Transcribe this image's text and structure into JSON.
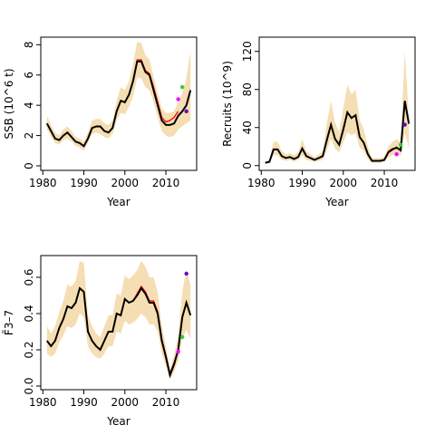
{
  "chart_data": [
    {
      "type": "line",
      "xlabel": "Year",
      "ylabel": "SSB (10^6 t)",
      "x": [
        1981,
        1982,
        1983,
        1984,
        1985,
        1986,
        1987,
        1988,
        1989,
        1990,
        1991,
        1992,
        1993,
        1994,
        1995,
        1996,
        1997,
        1998,
        1999,
        2000,
        2001,
        2002,
        2003,
        2004,
        2005,
        2006,
        2007,
        2008,
        2009,
        2010,
        2011,
        2012,
        2013,
        2014,
        2015,
        2016
      ],
      "xlim": [
        1979.5,
        2017.5
      ],
      "xticks": [
        1980,
        1990,
        2000,
        2010
      ],
      "ylim": [
        -0.3,
        8.5
      ],
      "yticks": [
        0,
        2,
        4,
        6,
        8
      ],
      "band": {
        "color": "#f5deb3",
        "upper": [
          3.3,
          2.7,
          2.2,
          2.0,
          2.4,
          2.6,
          2.3,
          1.9,
          1.8,
          1.6,
          2.2,
          3.0,
          3.1,
          3.1,
          2.8,
          2.7,
          3.0,
          4.3,
          5.2,
          5.0,
          5.6,
          6.7,
          8.2,
          8.1,
          7.3,
          7.0,
          5.9,
          4.8,
          3.8,
          3.5,
          3.5,
          3.6,
          4.2,
          4.8,
          5.8,
          7.6
        ],
        "lower": [
          2.4,
          1.9,
          1.5,
          1.4,
          1.7,
          1.8,
          1.6,
          1.3,
          1.2,
          1.0,
          1.5,
          2.1,
          2.2,
          2.1,
          1.9,
          1.8,
          2.1,
          3.0,
          3.5,
          3.4,
          3.9,
          4.6,
          5.8,
          5.8,
          5.2,
          5.0,
          4.2,
          3.2,
          2.3,
          2.0,
          1.9,
          2.0,
          2.4,
          2.6,
          2.8,
          3.0
        ]
      },
      "series": [
        {
          "color": "#ff0000",
          "values": [
            2.8,
            2.3,
            1.8,
            1.7,
            2.0,
            2.2,
            1.9,
            1.6,
            1.5,
            1.3,
            1.8,
            2.5,
            2.6,
            2.6,
            2.3,
            2.2,
            2.5,
            3.6,
            4.3,
            4.2,
            4.7,
            5.6,
            7.0,
            7.0,
            6.3,
            6.1,
            5.2,
            4.2,
            3.2,
            2.9,
            3.0,
            3.2,
            3.6,
            null,
            null,
            null
          ]
        },
        {
          "color": "#000000",
          "values": [
            2.8,
            2.3,
            1.8,
            1.7,
            2.0,
            2.2,
            1.9,
            1.6,
            1.5,
            1.3,
            1.8,
            2.5,
            2.6,
            2.6,
            2.3,
            2.2,
            2.5,
            3.6,
            4.3,
            4.2,
            4.7,
            5.6,
            6.9,
            6.9,
            6.2,
            6.0,
            5.0,
            4.0,
            3.0,
            2.7,
            2.7,
            2.8,
            3.3,
            3.6,
            4.0,
            5.0
          ]
        }
      ],
      "points": [
        {
          "x": 2013,
          "y": 4.4,
          "color": "#ff00ff"
        },
        {
          "x": 2014,
          "y": 5.2,
          "color": "#33cc33"
        },
        {
          "x": 2015,
          "y": 3.6,
          "color": "#6600cc"
        }
      ]
    },
    {
      "type": "line",
      "xlabel": "Year",
      "ylabel": "Recruits (10^9)",
      "x": [
        1981,
        1982,
        1983,
        1984,
        1985,
        1986,
        1987,
        1988,
        1989,
        1990,
        1991,
        1992,
        1993,
        1994,
        1995,
        1996,
        1997,
        1998,
        1999,
        2000,
        2001,
        2002,
        2003,
        2004,
        2005,
        2006,
        2007,
        2008,
        2009,
        2010,
        2011,
        2012,
        2013,
        2014,
        2015,
        2016
      ],
      "xlim": [
        1979.5,
        2017.5
      ],
      "xticks": [
        1980,
        1990,
        2000,
        2010
      ],
      "ylim": [
        -5,
        135
      ],
      "yticks": [
        0,
        40,
        80,
        120
      ],
      "band": {
        "color": "#f5deb3",
        "upper": [
          5,
          6,
          25,
          25,
          15,
          12,
          13,
          11,
          14,
          28,
          15,
          12,
          9,
          12,
          15,
          45,
          68,
          45,
          35,
          60,
          85,
          75,
          80,
          48,
          38,
          20,
          8,
          8,
          8,
          9,
          20,
          25,
          28,
          25,
          120,
          50
        ],
        "lower": [
          2,
          3,
          11,
          11,
          6,
          5,
          6,
          4,
          6,
          11,
          6,
          5,
          4,
          5,
          6,
          16,
          28,
          18,
          14,
          24,
          35,
          32,
          34,
          19,
          15,
          7,
          3,
          3,
          3,
          4,
          9,
          11,
          12,
          10,
          35,
          18
        ]
      },
      "series": [
        {
          "color": "#ff0000",
          "values": [
            3,
            4,
            17,
            17,
            10,
            8,
            9,
            7,
            9,
            18,
            10,
            8,
            6,
            8,
            10,
            27,
            43,
            28,
            22,
            38,
            56,
            50,
            53,
            30,
            24,
            12,
            5,
            5,
            5,
            6,
            15,
            18,
            18,
            null,
            null,
            null
          ]
        },
        {
          "color": "#000000",
          "values": [
            3,
            4,
            17,
            17,
            10,
            8,
            9,
            7,
            9,
            18,
            10,
            8,
            6,
            8,
            10,
            27,
            43,
            28,
            22,
            38,
            56,
            50,
            53,
            30,
            24,
            12,
            5,
            5,
            5,
            6,
            14,
            17,
            19,
            16,
            68,
            44
          ]
        }
      ],
      "points": [
        {
          "x": 2013,
          "y": 12,
          "color": "#ff00ff"
        },
        {
          "x": 2014,
          "y": 22,
          "color": "#33cc33"
        },
        {
          "x": 2015,
          "y": 43,
          "color": "#6600cc"
        }
      ]
    },
    {
      "type": "line",
      "xlabel": "Year",
      "ylabel": "F̄3–7",
      "x": [
        1981,
        1982,
        1983,
        1984,
        1985,
        1986,
        1987,
        1988,
        1989,
        1990,
        1991,
        1992,
        1993,
        1994,
        1995,
        1996,
        1997,
        1998,
        1999,
        2000,
        2001,
        2002,
        2003,
        2004,
        2005,
        2006,
        2007,
        2008,
        2009,
        2010,
        2011,
        2012,
        2013,
        2014,
        2015,
        2016
      ],
      "xlim": [
        1979.5,
        2017.5
      ],
      "xticks": [
        1980,
        1990,
        2000,
        2010
      ],
      "ylim": [
        -0.02,
        0.72
      ],
      "yticks": [
        {
          "value": 0,
          "label": "0.0"
        },
        0.2,
        0.4,
        0.6
      ],
      "band": {
        "color": "#f5deb3",
        "upper": [
          0.33,
          0.29,
          0.33,
          0.41,
          0.47,
          0.56,
          0.55,
          0.58,
          0.69,
          0.68,
          0.39,
          0.33,
          0.29,
          0.27,
          0.33,
          0.39,
          0.39,
          0.51,
          0.5,
          0.61,
          0.59,
          0.61,
          0.64,
          0.69,
          0.66,
          0.6,
          0.6,
          0.52,
          0.33,
          0.22,
          0.09,
          0.17,
          0.28,
          0.52,
          0.64,
          0.56
        ],
        "lower": [
          0.18,
          0.16,
          0.18,
          0.24,
          0.28,
          0.33,
          0.32,
          0.34,
          0.4,
          0.38,
          0.22,
          0.18,
          0.16,
          0.15,
          0.18,
          0.22,
          0.22,
          0.3,
          0.29,
          0.36,
          0.34,
          0.35,
          0.37,
          0.4,
          0.38,
          0.34,
          0.34,
          0.3,
          0.18,
          0.11,
          0.04,
          0.08,
          0.14,
          0.26,
          0.31,
          0.26
        ]
      },
      "series": [
        {
          "color": "#ff0000",
          "values": [
            0.25,
            0.22,
            0.25,
            0.32,
            0.37,
            0.44,
            0.43,
            0.46,
            0.54,
            0.52,
            0.3,
            0.25,
            0.22,
            0.2,
            0.25,
            0.3,
            0.3,
            0.4,
            0.39,
            0.48,
            0.46,
            0.47,
            0.51,
            0.55,
            0.52,
            0.47,
            0.47,
            0.41,
            0.26,
            0.17,
            0.07,
            0.13,
            0.19,
            null,
            null,
            null
          ]
        },
        {
          "color": "#000000",
          "values": [
            0.25,
            0.22,
            0.25,
            0.32,
            0.37,
            0.44,
            0.43,
            0.46,
            0.54,
            0.52,
            0.3,
            0.25,
            0.22,
            0.2,
            0.25,
            0.3,
            0.3,
            0.4,
            0.39,
            0.48,
            0.46,
            0.47,
            0.5,
            0.54,
            0.51,
            0.46,
            0.46,
            0.4,
            0.25,
            0.16,
            0.06,
            0.12,
            0.2,
            0.38,
            0.46,
            0.39
          ]
        }
      ],
      "points": [
        {
          "x": 2013,
          "y": 0.19,
          "color": "#ff00ff"
        },
        {
          "x": 2014,
          "y": 0.27,
          "color": "#33cc33"
        },
        {
          "x": 2015,
          "y": 0.62,
          "color": "#6600cc"
        }
      ]
    }
  ]
}
